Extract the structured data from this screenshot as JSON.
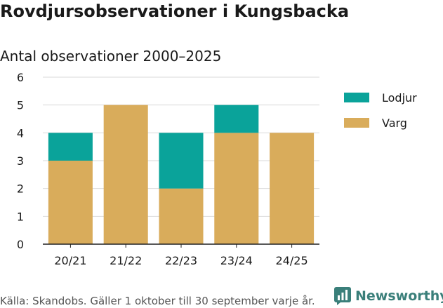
{
  "title": "Rovdjursobservationer i Kungsbacka",
  "subtitle": "Antal observationer 2000–2025",
  "footer": "Källa: Skandobs. Gäller 1 oktober till 30 september varje år.",
  "brand": {
    "name": "Newsworthy",
    "icon": "newsworthy-logo-icon"
  },
  "colors": {
    "lodjur": "#0aa39a",
    "varg": "#d9ac5b",
    "grid": "#d9d9d9",
    "axis": "#222222"
  },
  "chart_data": {
    "type": "bar",
    "stacked": true,
    "categories": [
      "20/21",
      "21/22",
      "22/23",
      "23/24",
      "24/25"
    ],
    "series": [
      {
        "name": "Varg",
        "values": [
          3,
          5,
          2,
          4,
          4
        ],
        "color": "#d9ac5b"
      },
      {
        "name": "Lodjur",
        "values": [
          1,
          0,
          2,
          1,
          0
        ],
        "color": "#0aa39a"
      }
    ],
    "ylim": [
      0,
      6
    ],
    "yticks": [
      "0",
      "1",
      "2",
      "3",
      "4",
      "5",
      "6"
    ],
    "grid": true,
    "legend_position": "top-right",
    "legend_order": [
      "Lodjur",
      "Varg"
    ]
  }
}
